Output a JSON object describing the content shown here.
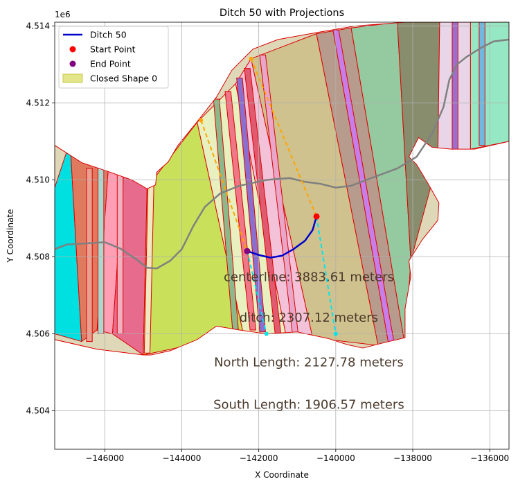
{
  "chart_data": {
    "type": "line",
    "title": "Ditch 50 with Projections",
    "xlabel": "X Coordinate",
    "ylabel": "Y Coordinate",
    "y_offset_label": "1e6",
    "xlim": [
      -147300,
      -135500
    ],
    "ylim": [
      4503000,
      4514100
    ],
    "y_display_scale": 1000000,
    "grid": true,
    "legend_position": "top-left",
    "x_ticks": [
      {
        "value": -146000,
        "label": "−146000"
      },
      {
        "value": -144000,
        "label": "−144000"
      },
      {
        "value": -142000,
        "label": "−142000"
      },
      {
        "value": -140000,
        "label": "−140000"
      },
      {
        "value": -138000,
        "label": "−138000"
      },
      {
        "value": -136000,
        "label": "−136000"
      }
    ],
    "y_ticks": [
      {
        "value": 4504000,
        "label": "4.504"
      },
      {
        "value": 4506000,
        "label": "4.506"
      },
      {
        "value": 4508000,
        "label": "4.508"
      },
      {
        "value": 4510000,
        "label": "4.510"
      },
      {
        "value": 4512000,
        "label": "4.512"
      },
      {
        "value": 4514000,
        "label": "4.514"
      }
    ],
    "legend": [
      {
        "label": "Ditch 50",
        "kind": "line",
        "color": "#0000cc"
      },
      {
        "label": "Start Point",
        "kind": "marker",
        "color": "#ff0000"
      },
      {
        "label": "End Point",
        "kind": "marker",
        "color": "#800080"
      },
      {
        "label": "Closed Shape 0",
        "kind": "patch",
        "color": "#e3e58a",
        "edge": "#c8c84a"
      }
    ],
    "colors": {
      "ditch": "#0000cc",
      "start": "#ff0000",
      "end": "#800080",
      "outline": "#dd0000",
      "centerline": "#808080",
      "north_projection": "#ffa500",
      "south_projection": "#00e5ee",
      "annotation_text": "#4a3a2c"
    },
    "outline": [
      [
        -147300,
        4510900
      ],
      [
        -146600,
        4510450
      ],
      [
        -146000,
        4510250
      ],
      [
        -145300,
        4510000
      ],
      [
        -144900,
        4509770
      ],
      [
        -144680,
        4509870
      ],
      [
        -144650,
        4510200
      ],
      [
        -144350,
        4510470
      ],
      [
        -144100,
        4510900
      ],
      [
        -143650,
        4511450
      ],
      [
        -143100,
        4512150
      ],
      [
        -142700,
        4512850
      ],
      [
        -142150,
        4513400
      ],
      [
        -141500,
        4513650
      ],
      [
        -140500,
        4513830
      ],
      [
        -139500,
        4514000
      ],
      [
        -138200,
        4514100
      ],
      [
        -135500,
        4514100
      ],
      [
        -135500,
        4511000
      ],
      [
        -136400,
        4510800
      ],
      [
        -137000,
        4510800
      ],
      [
        -137500,
        4510850
      ],
      [
        -137850,
        4511100
      ],
      [
        -138000,
        4510800
      ],
      [
        -138100,
        4510600
      ],
      [
        -137900,
        4510400
      ],
      [
        -137600,
        4509900
      ],
      [
        -137320,
        4509400
      ],
      [
        -137350,
        4508950
      ],
      [
        -137750,
        4508450
      ],
      [
        -138100,
        4507900
      ],
      [
        -138050,
        4507500
      ],
      [
        -138200,
        4506650
      ],
      [
        -138200,
        4505900
      ],
      [
        -138700,
        4505780
      ],
      [
        -139300,
        4505630
      ],
      [
        -139700,
        4505720
      ],
      [
        -140200,
        4505880
      ],
      [
        -141000,
        4506050
      ],
      [
        -141800,
        4506000
      ],
      [
        -142500,
        4506100
      ],
      [
        -143100,
        4506200
      ],
      [
        -143600,
        4505850
      ],
      [
        -144300,
        4505560
      ],
      [
        -144800,
        4505450
      ],
      [
        -145000,
        4505450
      ],
      [
        -146200,
        4505600
      ],
      [
        -147300,
        4505850
      ]
    ],
    "centerline": [
      [
        -147300,
        4508200
      ],
      [
        -147000,
        4508320
      ],
      [
        -146500,
        4508350
      ],
      [
        -146000,
        4508380
      ],
      [
        -145600,
        4508220
      ],
      [
        -145200,
        4507950
      ],
      [
        -144900,
        4507720
      ],
      [
        -144650,
        4507700
      ],
      [
        -144300,
        4507900
      ],
      [
        -144000,
        4508200
      ],
      [
        -143700,
        4508800
      ],
      [
        -143400,
        4509300
      ],
      [
        -143000,
        4509650
      ],
      [
        -142500,
        4509850
      ],
      [
        -141800,
        4510000
      ],
      [
        -141200,
        4510050
      ],
      [
        -140800,
        4509950
      ],
      [
        -140400,
        4509900
      ],
      [
        -140000,
        4509800
      ],
      [
        -139600,
        4509850
      ],
      [
        -139200,
        4510000
      ],
      [
        -138800,
        4510150
      ],
      [
        -138400,
        4510300
      ],
      [
        -137900,
        4510600
      ],
      [
        -137500,
        4511200
      ],
      [
        -137200,
        4511900
      ],
      [
        -137050,
        4512600
      ],
      [
        -136850,
        4513000
      ],
      [
        -136600,
        4513200
      ],
      [
        -136200,
        4513450
      ],
      [
        -135900,
        4513600
      ],
      [
        -135500,
        4513650
      ]
    ],
    "ditch": [
      [
        -142300,
        4508150
      ],
      [
        -142000,
        4508050
      ],
      [
        -141700,
        4507980
      ],
      [
        -141400,
        4508030
      ],
      [
        -141100,
        4508200
      ],
      [
        -140800,
        4508420
      ],
      [
        -140600,
        4508700
      ],
      [
        -140500,
        4509050
      ]
    ],
    "start_point": [
      -140500,
      4509050
    ],
    "end_point": [
      -142300,
      4508150
    ],
    "north_projection": [
      [
        -143500,
        4511550
      ],
      [
        -142300,
        4508150
      ],
      [
        -142200,
        4513150
      ],
      [
        -140500,
        4509050
      ]
    ],
    "south_projection": [
      [
        -142300,
        4508150
      ],
      [
        -141800,
        4506000
      ],
      [
        -140500,
        4509050
      ],
      [
        -140000,
        4506000
      ]
    ],
    "strips": [
      {
        "a": [
          -147300,
          4509800
        ],
        "b": [
          -146900,
          4511000
        ],
        "c": [
          -146600,
          4505800
        ],
        "d": [
          -147300,
          4506000
        ],
        "color": "#00e0e0"
      },
      {
        "a": [
          -146900,
          4511000
        ],
        "b": [
          -145900,
          4510400
        ],
        "c": [
          -146200,
          4506100
        ],
        "d": [
          -146600,
          4505800
        ],
        "color": "#e07a5f"
      },
      {
        "a": [
          -145900,
          4510400
        ],
        "b": [
          -145500,
          4510300
        ],
        "c": [
          -145800,
          4506000
        ],
        "d": [
          -146200,
          4506100
        ],
        "color": "#ff9eb4"
      },
      {
        "a": [
          -145500,
          4510300
        ],
        "b": [
          -144900,
          4509800
        ],
        "c": [
          -145000,
          4505450
        ],
        "d": [
          -145800,
          4506000
        ],
        "color": "#e66b8c"
      },
      {
        "a": [
          -144900,
          4509800
        ],
        "b": [
          -143600,
          4511500
        ],
        "c": [
          -142400,
          4506000
        ],
        "d": [
          -145000,
          4505450
        ],
        "color": "#c8e05a"
      },
      {
        "a": [
          -143600,
          4511500
        ],
        "b": [
          -142600,
          4512500
        ],
        "c": [
          -141300,
          4506000
        ],
        "d": [
          -142400,
          4506000
        ],
        "color": "#e8f0c0"
      },
      {
        "a": [
          -142600,
          4512500
        ],
        "b": [
          -142200,
          4513150
        ],
        "c": [
          -140600,
          4505900
        ],
        "d": [
          -141300,
          4506000
        ],
        "color": "#f4c2d8"
      },
      {
        "a": [
          -142200,
          4513150
        ],
        "b": [
          -140500,
          4513800
        ],
        "c": [
          -138900,
          4505700
        ],
        "d": [
          -140600,
          4505900
        ],
        "color": "#cfc28e"
      },
      {
        "a": [
          -140500,
          4513800
        ],
        "b": [
          -139600,
          4513950
        ],
        "c": [
          -138200,
          4505700
        ],
        "d": [
          -138900,
          4505700
        ],
        "color": "#b79b8c"
      },
      {
        "a": [
          -139600,
          4513950
        ],
        "b": [
          -138400,
          4514100
        ],
        "c": [
          -138050,
          4507900
        ],
        "d": [
          -138200,
          4505700
        ],
        "color": "#95c9a0"
      },
      {
        "a": [
          -138400,
          4514100
        ],
        "b": [
          -137300,
          4514100
        ],
        "c": [
          -137350,
          4510500
        ],
        "d": [
          -138050,
          4507900
        ],
        "color": "#888d6e"
      },
      {
        "a": [
          -137300,
          4514100
        ],
        "b": [
          -136500,
          4514100
        ],
        "c": [
          -136500,
          4510800
        ],
        "d": [
          -137350,
          4510500
        ],
        "color": "#e8d6e8"
      },
      {
        "a": [
          -136500,
          4514100
        ],
        "b": [
          -135500,
          4514100
        ],
        "c": [
          -135500,
          4511000
        ],
        "d": [
          -136500,
          4510800
        ],
        "color": "#96e8c4"
      }
    ],
    "thin_bands": [
      {
        "top": [
          -143100,
          4512100
        ],
        "bottom": [
          -142600,
          4506050
        ],
        "color": "#8db88a"
      },
      {
        "top": [
          -142800,
          4512300
        ],
        "bottom": [
          -142150,
          4506100
        ],
        "color": "#ee7788"
      },
      {
        "top": [
          -142500,
          4512650
        ],
        "bottom": [
          -141900,
          4506050
        ],
        "color": "#8a6fcf"
      },
      {
        "top": [
          -142300,
          4512900
        ],
        "bottom": [
          -141500,
          4506000
        ],
        "color": "#e05a70"
      },
      {
        "top": [
          -141900,
          4513250
        ],
        "bottom": [
          -141050,
          4506000
        ],
        "color": "#e8a6c8"
      },
      {
        "top": [
          -140000,
          4513900
        ],
        "bottom": [
          -138550,
          4505720
        ],
        "color": "#c77ee8"
      },
      {
        "top": [
          -136900,
          4514100
        ],
        "bottom": [
          -136900,
          4510750
        ],
        "color": "#9a70cc"
      },
      {
        "top": [
          -136200,
          4514100
        ],
        "bottom": [
          -136200,
          4510900
        ],
        "color": "#70b8e0"
      },
      {
        "top": [
          -146400,
          4510300
        ],
        "bottom": [
          -146400,
          4505800
        ],
        "color": "#e8a090"
      },
      {
        "top": [
          -146100,
          4510300
        ],
        "bottom": [
          -146100,
          4506000
        ],
        "color": "#a8d8d0"
      },
      {
        "top": [
          -145600,
          4510250
        ],
        "bottom": [
          -145600,
          4506000
        ],
        "color": "#f0b0c0"
      },
      {
        "top": [
          -144800,
          4509900
        ],
        "bottom": [
          -144900,
          4505500
        ],
        "color": "#f0e8c0"
      }
    ],
    "annotations": [
      {
        "text": "centerline: 3883.61 meters",
        "x": -140700,
        "y": 4507370
      },
      {
        "text": "ditch: 2307.12 meters",
        "x": -140700,
        "y": 4506320
      },
      {
        "text": "North Length: 2127.78 meters",
        "x": -140700,
        "y": 4505150
      },
      {
        "text": "South Length: 1906.57 meters",
        "x": -140700,
        "y": 4504050
      }
    ]
  }
}
